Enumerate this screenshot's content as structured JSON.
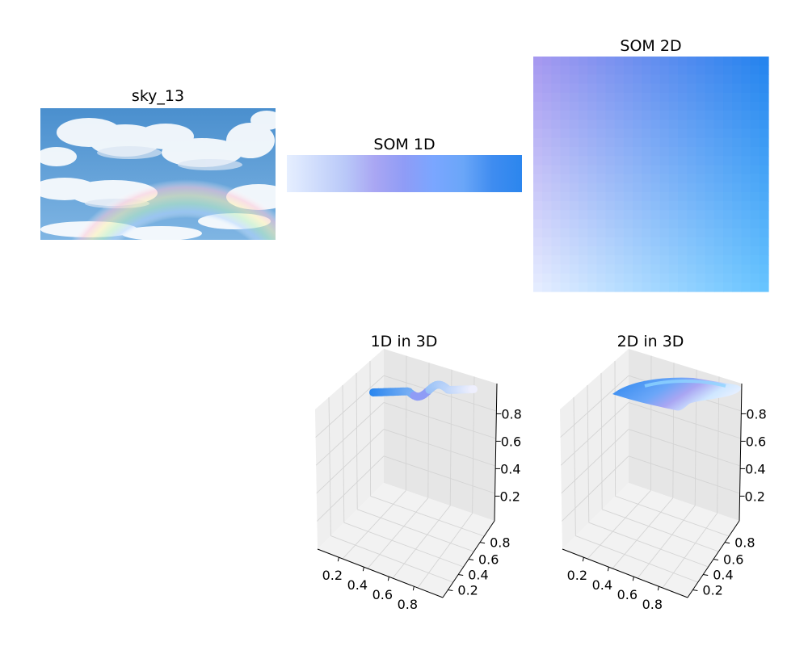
{
  "panels": {
    "image": {
      "title": "sky_13"
    },
    "som1d": {
      "title": "SOM 1D",
      "colors": [
        "#e6efff",
        "#cfdcfc",
        "#b9c8f8",
        "#a9a6f3",
        "#8f9cf6",
        "#7aa6ff",
        "#6aa6f8",
        "#3f8cf0",
        "#2b86ee"
      ]
    },
    "som2d": {
      "title": "SOM 2D",
      "corners": {
        "top_left": "#a798f0",
        "top_right": "#2283ee",
        "bottom_left": "#e8eeff",
        "bottom_right": "#66c4ff"
      }
    }
  },
  "chart_data": [
    {
      "type": "scatter3d",
      "title": "1D in 3D",
      "xticks": [
        "0.2",
        "0.4",
        "0.6",
        "0.8"
      ],
      "yticks": [
        "0.2",
        "0.4",
        "0.6",
        "0.8"
      ],
      "zticks": [
        "0.2",
        "0.4",
        "0.6",
        "0.8"
      ],
      "xlim": [
        0,
        1
      ],
      "ylim": [
        0,
        1
      ],
      "zlim": [
        0,
        1
      ],
      "grid": true
    },
    {
      "type": "surface3d",
      "title": "2D in 3D",
      "xticks": [
        "0.2",
        "0.4",
        "0.6",
        "0.8"
      ],
      "yticks": [
        "0.2",
        "0.4",
        "0.6",
        "0.8"
      ],
      "zticks": [
        "0.2",
        "0.4",
        "0.6",
        "0.8"
      ],
      "xlim": [
        0,
        1
      ],
      "ylim": [
        0,
        1
      ],
      "zlim": [
        0,
        1
      ],
      "grid": true
    }
  ]
}
